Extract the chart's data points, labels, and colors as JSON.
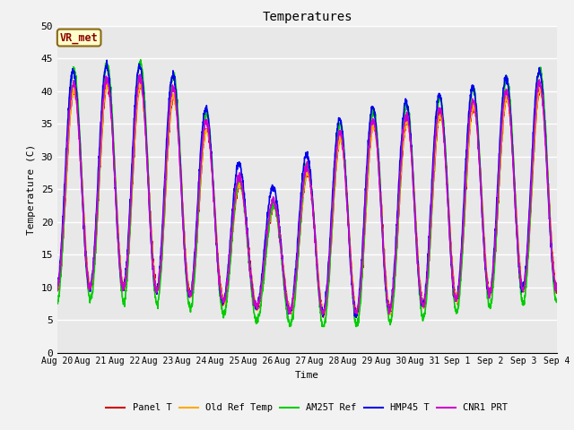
{
  "title": "Temperatures",
  "xlabel": "Time",
  "ylabel": "Temperature (C)",
  "ylim": [
    0,
    50
  ],
  "yticks": [
    0,
    5,
    10,
    15,
    20,
    25,
    30,
    35,
    40,
    45,
    50
  ],
  "annotation_text": "VR_met",
  "bg_color": "#e8e8e8",
  "fig_bg_color": "#f2f2f2",
  "grid_color": "white",
  "series": [
    {
      "label": "Panel T",
      "color": "#cc0000",
      "lw": 1.2
    },
    {
      "label": "Old Ref Temp",
      "color": "#ffaa00",
      "lw": 1.2
    },
    {
      "label": "AM25T Ref",
      "color": "#00cc00",
      "lw": 1.2
    },
    {
      "label": "HMP45 T",
      "color": "#0000ee",
      "lw": 1.2
    },
    {
      "label": "CNR1 PRT",
      "color": "#cc00cc",
      "lw": 1.2
    }
  ],
  "x_tick_labels": [
    "Aug 20",
    "Aug 21",
    "Aug 22",
    "Aug 23",
    "Aug 24",
    "Aug 25",
    "Aug 26",
    "Aug 27",
    "Aug 28",
    "Aug 29",
    "Aug 30",
    "Aug 31",
    "Sep 1",
    "Sep 2",
    "Sep 3",
    "Sep 4"
  ],
  "font_family": "monospace",
  "font_size_ticks": 7,
  "font_size_labels": 8,
  "font_size_title": 10
}
